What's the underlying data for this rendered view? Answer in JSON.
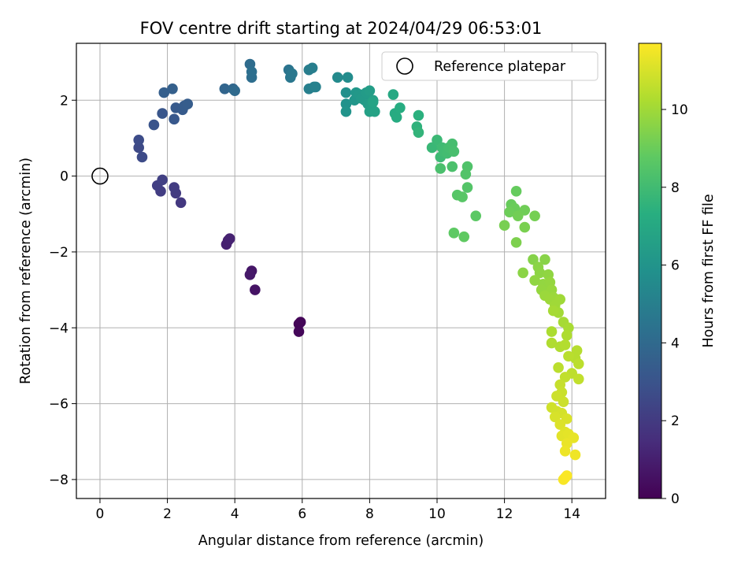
{
  "chart_data": {
    "type": "scatter",
    "title": "FOV centre drift starting at 2024/04/29 06:53:01",
    "xlabel": "Angular distance from reference (arcmin)",
    "ylabel": "Rotation from reference (arcmin)",
    "xlim": [
      -0.7,
      15.0
    ],
    "ylim": [
      -8.5,
      3.5
    ],
    "xticks": [
      0,
      2,
      4,
      6,
      8,
      10,
      12,
      14
    ],
    "yticks": [
      -8,
      -6,
      -4,
      -2,
      0,
      2
    ],
    "grid": true,
    "legend": {
      "position": "top-right",
      "entries": [
        "Reference platepar"
      ]
    },
    "reference_point": {
      "x": 0,
      "y": 0,
      "label": "Reference platepar"
    },
    "colorbar": {
      "label": "Hours from first FF file",
      "min": 0,
      "max": 11.7,
      "ticks": [
        0,
        2,
        4,
        6,
        8,
        10
      ],
      "colormap": "viridis"
    },
    "points": [
      [
        5.9,
        -3.9,
        0.1
      ],
      [
        5.95,
        -3.85,
        0.15
      ],
      [
        5.9,
        -4.1,
        0.2
      ],
      [
        4.6,
        -3.0,
        0.6
      ],
      [
        4.5,
        -2.5,
        0.7
      ],
      [
        4.45,
        -2.6,
        0.8
      ],
      [
        3.8,
        -1.7,
        1.0
      ],
      [
        3.75,
        -1.8,
        1.05
      ],
      [
        3.85,
        -1.65,
        1.1
      ],
      [
        2.4,
        -0.7,
        1.9
      ],
      [
        2.25,
        -0.45,
        2.0
      ],
      [
        2.2,
        -0.3,
        2.05
      ],
      [
        1.8,
        -0.4,
        2.1
      ],
      [
        1.7,
        -0.25,
        2.15
      ],
      [
        1.85,
        -0.1,
        2.2
      ],
      [
        1.15,
        0.75,
        2.6
      ],
      [
        1.25,
        0.5,
        2.65
      ],
      [
        1.15,
        0.95,
        2.7
      ],
      [
        1.6,
        1.35,
        3.0
      ],
      [
        1.85,
        1.65,
        3.1
      ],
      [
        2.2,
        1.5,
        3.2
      ],
      [
        2.25,
        1.8,
        3.3
      ],
      [
        2.45,
        1.75,
        3.35
      ],
      [
        2.5,
        1.85,
        3.4
      ],
      [
        2.6,
        1.9,
        3.45
      ],
      [
        1.9,
        2.2,
        3.5
      ],
      [
        2.15,
        2.3,
        3.55
      ],
      [
        3.7,
        2.3,
        3.8
      ],
      [
        3.95,
        2.3,
        3.9
      ],
      [
        4.0,
        2.25,
        4.0
      ],
      [
        4.45,
        2.95,
        4.1
      ],
      [
        4.5,
        2.6,
        4.2
      ],
      [
        4.5,
        2.75,
        4.25
      ],
      [
        5.6,
        2.8,
        4.5
      ],
      [
        5.65,
        2.6,
        4.6
      ],
      [
        5.7,
        2.7,
        4.65
      ],
      [
        6.2,
        2.8,
        4.9
      ],
      [
        6.3,
        2.85,
        4.95
      ],
      [
        6.2,
        2.3,
        5.0
      ],
      [
        6.35,
        2.35,
        5.05
      ],
      [
        6.4,
        2.35,
        5.1
      ],
      [
        7.05,
        2.6,
        5.5
      ],
      [
        7.35,
        2.6,
        5.6
      ],
      [
        7.3,
        2.2,
        5.8
      ],
      [
        7.3,
        1.9,
        5.9
      ],
      [
        7.3,
        1.7,
        6.0
      ],
      [
        7.55,
        2.0,
        6.1
      ],
      [
        7.6,
        2.2,
        6.15
      ],
      [
        7.7,
        2.15,
        6.2
      ],
      [
        7.75,
        2.05,
        6.25
      ],
      [
        7.85,
        2.0,
        6.3
      ],
      [
        7.9,
        2.2,
        6.35
      ],
      [
        7.95,
        1.9,
        6.4
      ],
      [
        8.0,
        2.25,
        6.45
      ],
      [
        8.05,
        1.85,
        6.5
      ],
      [
        8.1,
        2.0,
        6.55
      ],
      [
        8.0,
        1.7,
        6.6
      ],
      [
        8.15,
        1.7,
        6.7
      ],
      [
        8.1,
        1.95,
        6.75
      ],
      [
        8.7,
        2.15,
        7.0
      ],
      [
        8.75,
        1.65,
        7.1
      ],
      [
        8.8,
        1.55,
        7.15
      ],
      [
        8.9,
        1.8,
        7.2
      ],
      [
        9.45,
        1.6,
        7.4
      ],
      [
        9.4,
        1.3,
        7.5
      ],
      [
        9.45,
        1.15,
        7.6
      ],
      [
        9.85,
        0.75,
        7.8
      ],
      [
        10.0,
        0.95,
        7.85
      ],
      [
        10.1,
        0.5,
        7.9
      ],
      [
        10.15,
        0.75,
        7.95
      ],
      [
        10.2,
        0.65,
        8.0
      ],
      [
        10.3,
        0.6,
        8.05
      ],
      [
        10.35,
        0.75,
        8.1
      ],
      [
        10.45,
        0.85,
        8.15
      ],
      [
        10.5,
        0.65,
        8.2
      ],
      [
        10.1,
        0.2,
        8.25
      ],
      [
        10.45,
        0.25,
        8.3
      ],
      [
        10.9,
        0.25,
        8.4
      ],
      [
        10.85,
        0.05,
        8.45
      ],
      [
        10.9,
        -0.3,
        8.5
      ],
      [
        10.6,
        -0.5,
        8.55
      ],
      [
        10.75,
        -0.55,
        8.6
      ],
      [
        11.15,
        -1.05,
        8.7
      ],
      [
        10.5,
        -1.5,
        8.75
      ],
      [
        10.8,
        -1.6,
        8.8
      ],
      [
        12.35,
        -0.4,
        8.9
      ],
      [
        12.2,
        -0.75,
        8.95
      ],
      [
        12.3,
        -0.85,
        9.0
      ],
      [
        12.15,
        -0.95,
        9.05
      ],
      [
        12.6,
        -0.9,
        9.1
      ],
      [
        12.4,
        -1.05,
        9.15
      ],
      [
        12.9,
        -1.05,
        9.2
      ],
      [
        12.0,
        -1.3,
        9.25
      ],
      [
        12.6,
        -1.35,
        9.3
      ],
      [
        12.35,
        -1.75,
        9.35
      ],
      [
        12.85,
        -2.2,
        9.5
      ],
      [
        13.2,
        -2.2,
        9.55
      ],
      [
        13.0,
        -2.4,
        9.6
      ],
      [
        12.55,
        -2.55,
        9.6
      ],
      [
        13.05,
        -2.55,
        9.65
      ],
      [
        13.3,
        -2.6,
        9.7
      ],
      [
        12.9,
        -2.75,
        9.7
      ],
      [
        13.15,
        -2.85,
        9.75
      ],
      [
        13.35,
        -2.8,
        9.8
      ],
      [
        13.1,
        -3.0,
        9.8
      ],
      [
        13.4,
        -3.0,
        9.85
      ],
      [
        13.2,
        -3.15,
        9.9
      ],
      [
        13.45,
        -3.2,
        9.9
      ],
      [
        13.35,
        -3.25,
        9.95
      ],
      [
        13.65,
        -3.25,
        10.0
      ],
      [
        13.5,
        -3.4,
        10.0
      ],
      [
        13.6,
        -3.6,
        10.05
      ],
      [
        13.45,
        -3.55,
        10.1
      ],
      [
        13.75,
        -3.85,
        10.1
      ],
      [
        13.9,
        -4.0,
        10.15
      ],
      [
        13.4,
        -4.1,
        10.2
      ],
      [
        13.85,
        -4.2,
        10.25
      ],
      [
        13.4,
        -4.4,
        10.3
      ],
      [
        13.65,
        -4.5,
        10.3
      ],
      [
        13.8,
        -4.45,
        10.35
      ],
      [
        14.15,
        -4.6,
        10.4
      ],
      [
        14.1,
        -4.8,
        10.4
      ],
      [
        13.9,
        -4.75,
        10.45
      ],
      [
        14.2,
        -4.95,
        10.5
      ],
      [
        13.6,
        -5.05,
        10.5
      ],
      [
        14.0,
        -5.2,
        10.55
      ],
      [
        14.2,
        -5.35,
        10.6
      ],
      [
        13.8,
        -5.3,
        10.6
      ],
      [
        13.65,
        -5.5,
        10.7
      ],
      [
        13.7,
        -5.7,
        10.75
      ],
      [
        13.55,
        -5.8,
        10.8
      ],
      [
        13.75,
        -5.95,
        10.8
      ],
      [
        13.4,
        -6.1,
        10.85
      ],
      [
        13.55,
        -6.2,
        10.9
      ],
      [
        13.7,
        -6.25,
        10.95
      ],
      [
        13.5,
        -6.35,
        11.0
      ],
      [
        13.85,
        -6.4,
        11.05
      ],
      [
        13.65,
        -6.55,
        11.1
      ],
      [
        13.8,
        -6.75,
        11.15
      ],
      [
        13.7,
        -6.85,
        11.2
      ],
      [
        13.9,
        -6.8,
        11.25
      ],
      [
        14.05,
        -6.9,
        11.3
      ],
      [
        13.85,
        -7.05,
        11.35
      ],
      [
        13.8,
        -7.25,
        11.4
      ],
      [
        14.1,
        -7.35,
        11.45
      ],
      [
        13.8,
        -7.95,
        11.55
      ],
      [
        13.75,
        -8.0,
        11.6
      ],
      [
        13.85,
        -7.9,
        11.65
      ]
    ]
  }
}
